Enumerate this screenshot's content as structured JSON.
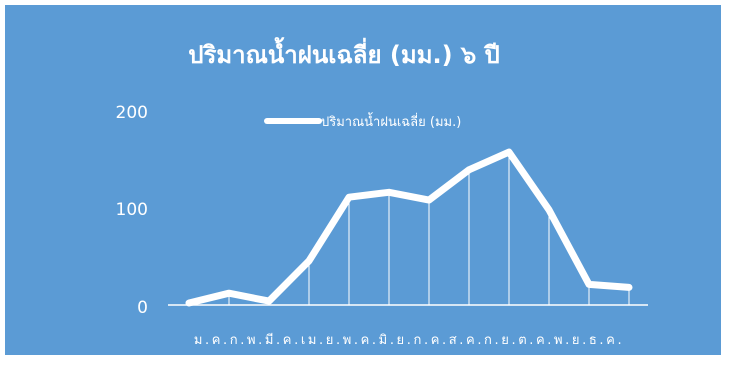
{
  "chart_data": {
    "type": "line",
    "title": "ปริมาณน้ำฝนเฉลี่ย (มม.) ๖ ปี",
    "categories": [
      "ม.ค.",
      "ก.พ.",
      "มี.ค.",
      "เม.ย.",
      "พ.ค.",
      "มิ.ย.",
      "ก.ค.",
      "ส.ค.",
      "ก.ย.",
      "ต.ค.",
      "พ.ย.",
      "ธ.ค."
    ],
    "series": [
      {
        "name": "ปริมาณน้ำฝนเฉลี่ย (มม.)",
        "values": [
          2,
          12,
          4,
          45,
          110,
          115,
          107,
          138,
          156,
          97,
          21,
          18
        ]
      }
    ],
    "yticks": [
      "0",
      "100",
      "200"
    ],
    "ylim": [
      0,
      200
    ],
    "legend_position": "top",
    "drop_lines": true,
    "grid": false,
    "colors": {
      "background": "#5b9bd5",
      "line": "#ffffff",
      "text": "#ffffff"
    }
  }
}
